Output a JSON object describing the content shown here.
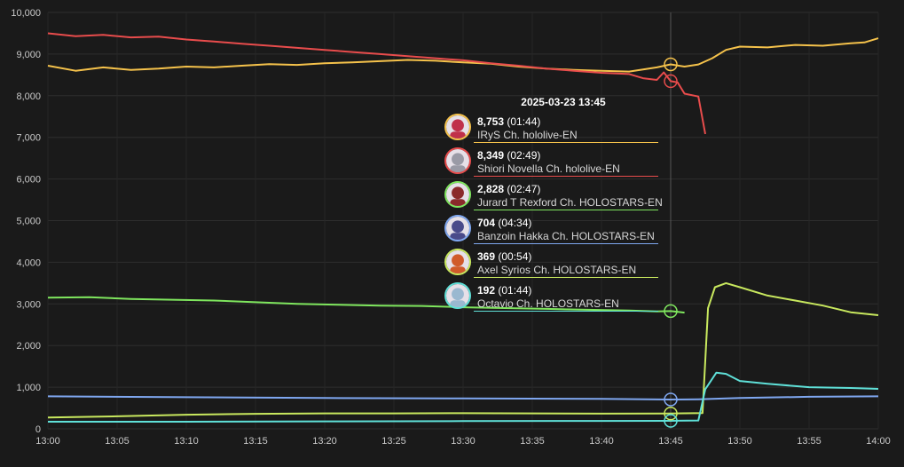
{
  "chart_data": {
    "type": "line",
    "x_ticks": [
      "13:00",
      "13:05",
      "13:10",
      "13:15",
      "13:20",
      "13:25",
      "13:30",
      "13:35",
      "13:40",
      "13:45",
      "13:50",
      "13:55",
      "14:00"
    ],
    "y_ticks": [
      "0",
      "1,000",
      "2,000",
      "3,000",
      "4,000",
      "5,000",
      "6,000",
      "7,000",
      "8,000",
      "9,000",
      "10,000"
    ],
    "ylim": [
      0,
      10000
    ],
    "xlim_minutes": [
      0,
      60
    ],
    "crosshair_minute": 45,
    "grid": true,
    "series": [
      {
        "name": "IRyS Ch. hololive-EN",
        "color": "#f5c24b",
        "points": [
          [
            0,
            8720
          ],
          [
            2,
            8600
          ],
          [
            4,
            8680
          ],
          [
            6,
            8620
          ],
          [
            8,
            8650
          ],
          [
            10,
            8700
          ],
          [
            12,
            8680
          ],
          [
            14,
            8720
          ],
          [
            16,
            8760
          ],
          [
            18,
            8740
          ],
          [
            20,
            8780
          ],
          [
            22,
            8800
          ],
          [
            24,
            8830
          ],
          [
            26,
            8860
          ],
          [
            28,
            8840
          ],
          [
            30,
            8800
          ],
          [
            32,
            8770
          ],
          [
            34,
            8700
          ],
          [
            36,
            8650
          ],
          [
            38,
            8620
          ],
          [
            40,
            8600
          ],
          [
            42,
            8580
          ],
          [
            44,
            8680
          ],
          [
            45,
            8753
          ],
          [
            46,
            8700
          ],
          [
            47,
            8750
          ],
          [
            48,
            8900
          ],
          [
            49,
            9100
          ],
          [
            50,
            9180
          ],
          [
            52,
            9160
          ],
          [
            54,
            9220
          ],
          [
            56,
            9200
          ],
          [
            58,
            9260
          ],
          [
            59,
            9280
          ],
          [
            60,
            9380
          ]
        ]
      },
      {
        "name": "Shiori Novella Ch. hololive-EN",
        "color": "#e84c4c",
        "points": [
          [
            0,
            9500
          ],
          [
            2,
            9430
          ],
          [
            4,
            9460
          ],
          [
            6,
            9400
          ],
          [
            8,
            9420
          ],
          [
            10,
            9350
          ],
          [
            12,
            9300
          ],
          [
            14,
            9250
          ],
          [
            16,
            9200
          ],
          [
            18,
            9150
          ],
          [
            20,
            9100
          ],
          [
            22,
            9050
          ],
          [
            24,
            9000
          ],
          [
            26,
            8950
          ],
          [
            28,
            8900
          ],
          [
            30,
            8850
          ],
          [
            32,
            8780
          ],
          [
            34,
            8720
          ],
          [
            36,
            8650
          ],
          [
            38,
            8600
          ],
          [
            40,
            8550
          ],
          [
            42,
            8520
          ],
          [
            43,
            8420
          ],
          [
            44,
            8380
          ],
          [
            44.5,
            8560
          ],
          [
            45,
            8349
          ],
          [
            45.5,
            8320
          ],
          [
            46,
            8050
          ],
          [
            47,
            7980
          ],
          [
            47.5,
            7080
          ]
        ]
      },
      {
        "name": "Jurard T Rexford Ch. HOLOSTARS-EN",
        "color": "#7fe65e",
        "points": [
          [
            0,
            3150
          ],
          [
            3,
            3160
          ],
          [
            6,
            3120
          ],
          [
            9,
            3100
          ],
          [
            12,
            3080
          ],
          [
            15,
            3040
          ],
          [
            18,
            3000
          ],
          [
            21,
            2980
          ],
          [
            24,
            2960
          ],
          [
            27,
            2950
          ],
          [
            30,
            2920
          ],
          [
            33,
            2900
          ],
          [
            36,
            2880
          ],
          [
            39,
            2860
          ],
          [
            42,
            2840
          ],
          [
            44,
            2820
          ],
          [
            45,
            2828
          ],
          [
            46,
            2790
          ]
        ]
      },
      {
        "name": "Banzoin Hakka Ch. HOLOSTARS-EN",
        "color": "#7fa7f0",
        "points": [
          [
            0,
            780
          ],
          [
            10,
            760
          ],
          [
            20,
            740
          ],
          [
            30,
            730
          ],
          [
            40,
            720
          ],
          [
            45,
            704
          ],
          [
            47,
            710
          ],
          [
            50,
            740
          ],
          [
            55,
            770
          ],
          [
            60,
            780
          ]
        ]
      },
      {
        "name": "Axel Syrios Ch. HOLOSTARS-EN",
        "color": "#c8e85e",
        "points": [
          [
            0,
            270
          ],
          [
            5,
            300
          ],
          [
            10,
            340
          ],
          [
            15,
            360
          ],
          [
            20,
            370
          ],
          [
            25,
            370
          ],
          [
            30,
            375
          ],
          [
            35,
            370
          ],
          [
            40,
            365
          ],
          [
            45,
            369
          ],
          [
            47.3,
            380
          ],
          [
            47.7,
            2900
          ],
          [
            48.2,
            3400
          ],
          [
            49,
            3500
          ],
          [
            50,
            3400
          ],
          [
            52,
            3200
          ],
          [
            54,
            3080
          ],
          [
            56,
            2960
          ],
          [
            58,
            2800
          ],
          [
            60,
            2730
          ]
        ]
      },
      {
        "name": "Octavio Ch. HOLOSTARS-EN",
        "color": "#5fe0d8",
        "points": [
          [
            0,
            170
          ],
          [
            10,
            170
          ],
          [
            20,
            180
          ],
          [
            30,
            185
          ],
          [
            40,
            190
          ],
          [
            45,
            192
          ],
          [
            47,
            200
          ],
          [
            47.5,
            950
          ],
          [
            48.3,
            1350
          ],
          [
            49,
            1320
          ],
          [
            50,
            1150
          ],
          [
            52,
            1080
          ],
          [
            55,
            1000
          ],
          [
            58,
            980
          ],
          [
            60,
            960
          ]
        ]
      }
    ]
  },
  "tooltip": {
    "title": "2025-03-23 13:45",
    "rows": [
      {
        "value": "8,753",
        "time": "(01:44)",
        "name": "IRyS Ch. hololive-EN",
        "color": "#f5c24b",
        "avatar": "#c0304a"
      },
      {
        "value": "8,349",
        "time": "(02:49)",
        "name": "Shiori Novella Ch. hololive-EN",
        "color": "#e84c4c",
        "avatar": "#9a9aa6"
      },
      {
        "value": "2,828",
        "time": "(02:47)",
        "name": "Jurard T Rexford Ch. HOLOSTARS-EN",
        "color": "#7fe65e",
        "avatar": "#8a2a2a"
      },
      {
        "value": "704",
        "time": "(04:34)",
        "name": "Banzoin Hakka Ch. HOLOSTARS-EN",
        "color": "#7fa7f0",
        "avatar": "#4a4a8a"
      },
      {
        "value": "369",
        "time": "(00:54)",
        "name": "Axel Syrios Ch. HOLOSTARS-EN",
        "color": "#c8e85e",
        "avatar": "#d05a2a"
      },
      {
        "value": "192",
        "time": "(01:44)",
        "name": "Octavio Ch. HOLOSTARS-EN",
        "color": "#5fe0d8",
        "avatar": "#9ab8d0"
      }
    ]
  }
}
